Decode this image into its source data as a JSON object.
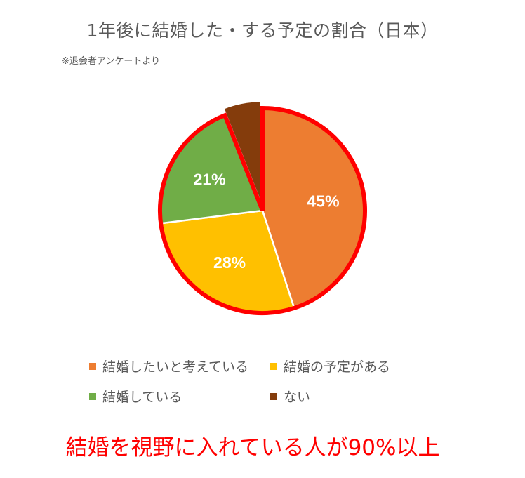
{
  "title": "1年後に結婚した・する予定の割合（日本）",
  "subtitle": "※退会者アンケートより",
  "footnote": "結婚を視野に入れている人が90%以上",
  "chart_data": {
    "type": "pie",
    "start_angle_deg": 0,
    "direction": "clockwise",
    "slices": [
      {
        "label": "結婚したいと考えている",
        "value": 45,
        "data_label": "45%",
        "color": "#ED7D31",
        "exploded": false
      },
      {
        "label": "結婚の予定がある",
        "value": 28,
        "data_label": "28%",
        "color": "#FFC000",
        "exploded": false
      },
      {
        "label": "結婚している",
        "value": 21,
        "data_label": "21%",
        "color": "#70AD47",
        "exploded": false
      },
      {
        "label": "ない",
        "value": 6,
        "data_label": "",
        "color": "#843C0C",
        "exploded": true
      }
    ],
    "highlight_outline_color": "#FF0000",
    "legend_position": "bottom"
  },
  "legend": [
    {
      "label": "結婚したいと考えている",
      "color": "#ED7D31"
    },
    {
      "label": "結婚の予定がある",
      "color": "#FFC000"
    },
    {
      "label": "結婚している",
      "color": "#70AD47"
    },
    {
      "label": "ない",
      "color": "#843C0C"
    }
  ]
}
